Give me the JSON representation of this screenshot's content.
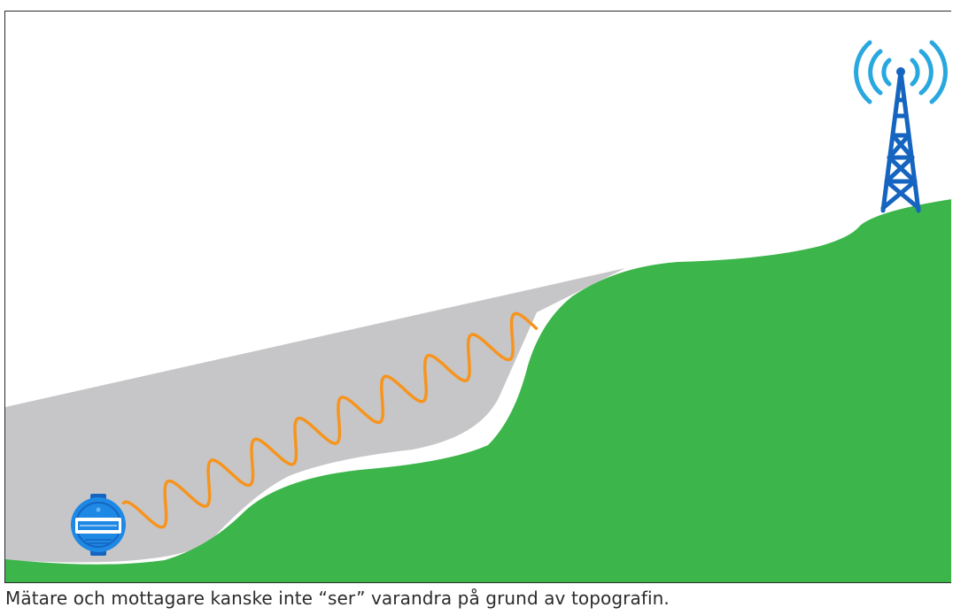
{
  "figure": {
    "caption": "Mätare och mottagare kanske inte “ser” varandra på grund av topografin.",
    "colors": {
      "hill": "#3cb54a",
      "shadow_zone": "#c6c6c8",
      "signal_wave": "#f7941d",
      "tower": "#1565c0",
      "radio_waves": "#29a8e0",
      "meter_body": "#1e88e5",
      "meter_dark": "#1565c0",
      "frame": "#2b2b2b"
    },
    "icons": {
      "tower": "radio-tower-icon",
      "meter": "water-meter-icon",
      "waves": "broadcast-waves-icon"
    }
  }
}
